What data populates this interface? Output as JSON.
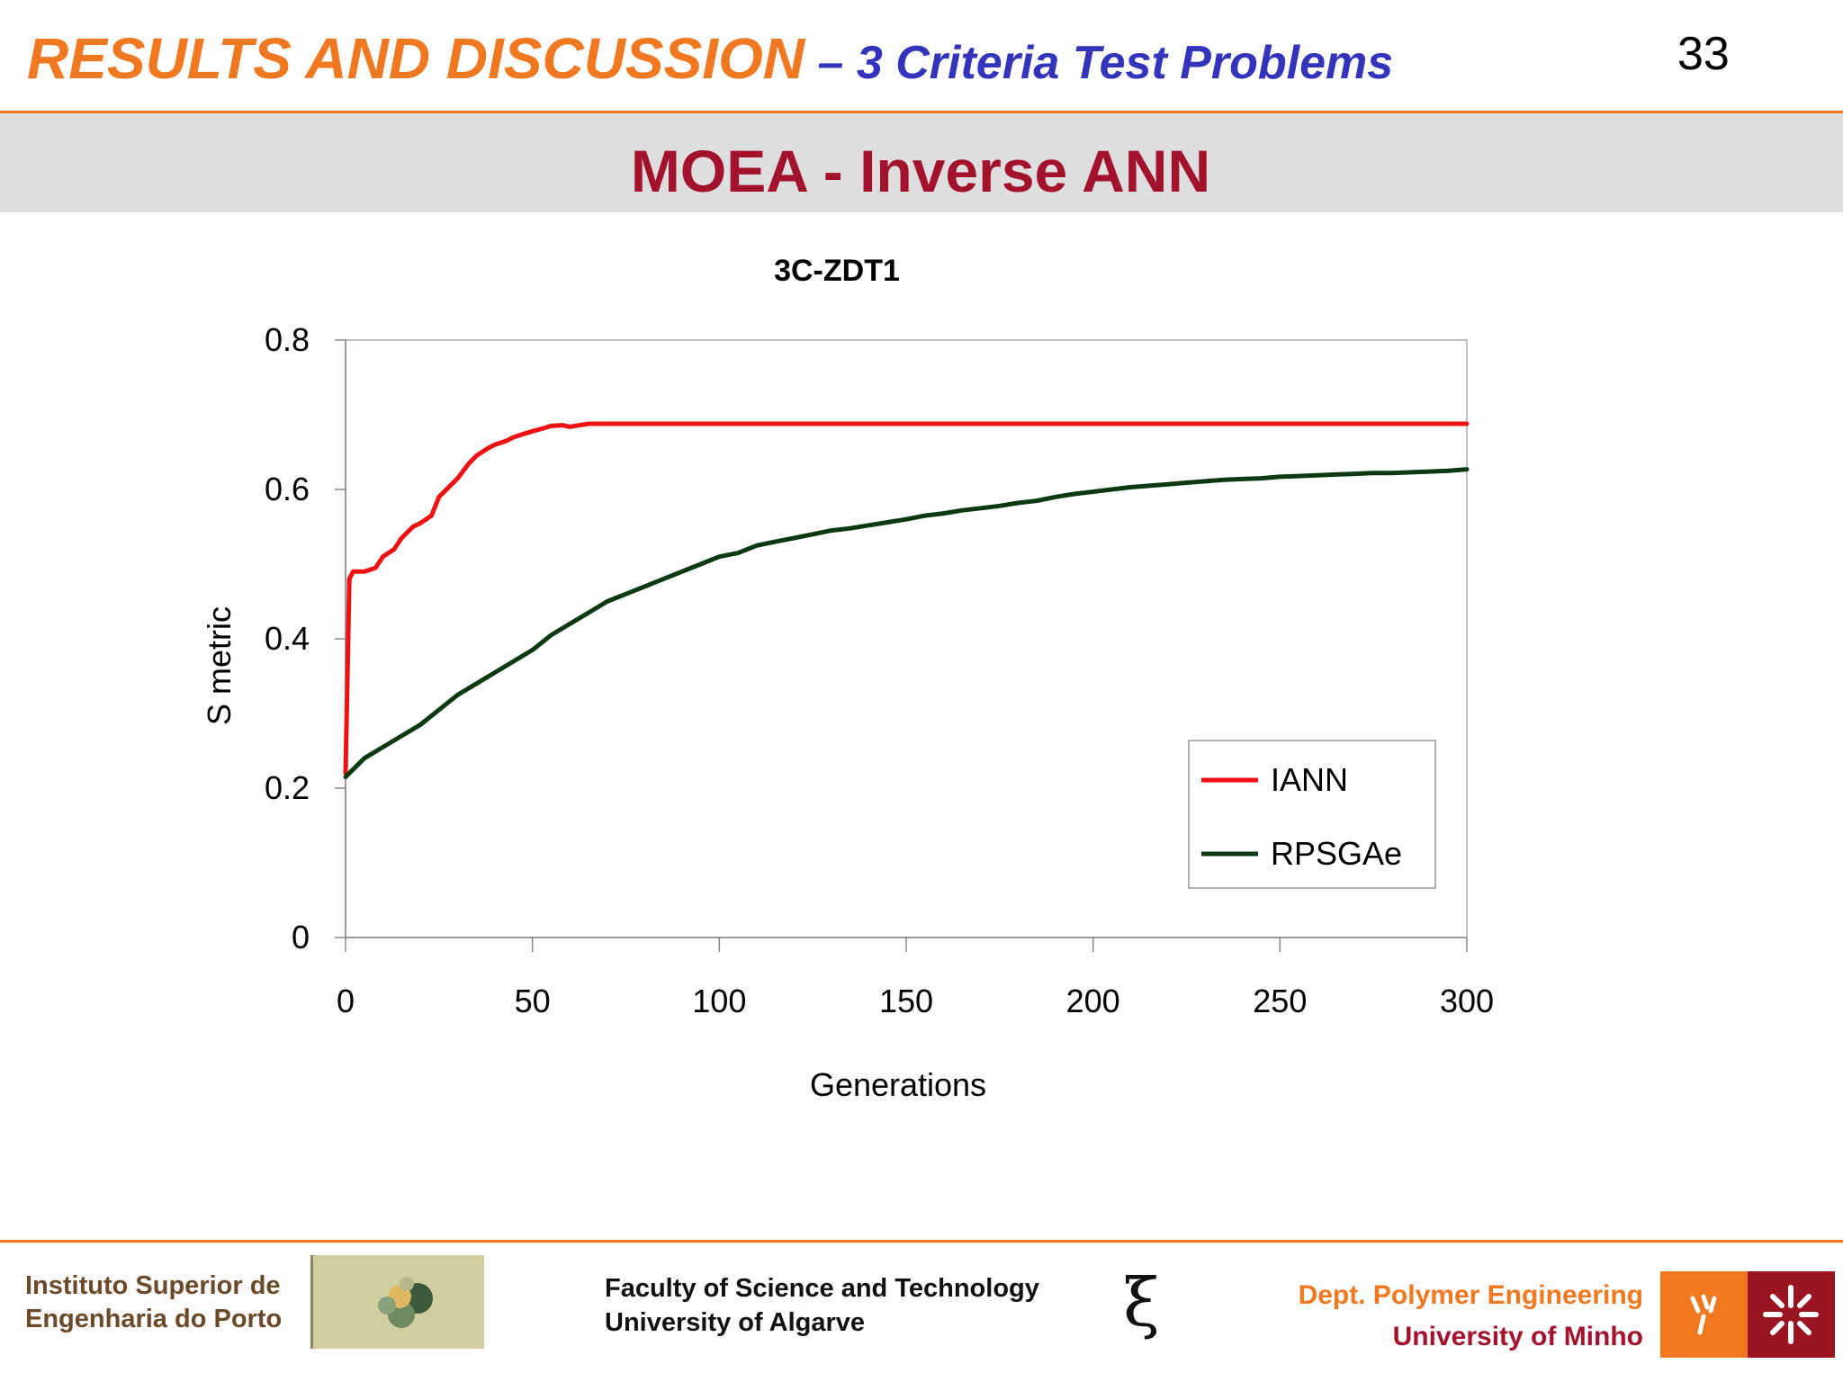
{
  "header": {
    "title_main": "RESULTS AND DISCUSSION",
    "title_sub": " – 3 Criteria Test Problems",
    "page_number": "33",
    "banner": "MOEA - Inverse ANN"
  },
  "chart_data": {
    "type": "line",
    "title": "3C-ZDT1",
    "xlabel": "Generations",
    "ylabel": "S metric",
    "xlim": [
      0,
      300
    ],
    "ylim": [
      0,
      0.8
    ],
    "xticks": [
      0,
      50,
      100,
      150,
      200,
      250,
      300
    ],
    "yticks": [
      0,
      0.2,
      0.4,
      0.6,
      0.8
    ],
    "xtick_labels": [
      "0",
      "50",
      "100",
      "150",
      "200",
      "250",
      "300"
    ],
    "ytick_labels": [
      "0",
      "0.2",
      "0.4",
      "0.6",
      "0.8"
    ],
    "grid": false,
    "legend_position": "bottom-right",
    "series": [
      {
        "name": "IANN",
        "color": "#ee1111",
        "x": [
          0,
          1,
          2,
          5,
          8,
          10,
          13,
          15,
          18,
          20,
          23,
          25,
          28,
          30,
          33,
          35,
          38,
          40,
          43,
          45,
          48,
          50,
          53,
          55,
          58,
          60,
          65,
          300
        ],
        "y": [
          0.22,
          0.48,
          0.49,
          0.49,
          0.495,
          0.51,
          0.52,
          0.535,
          0.55,
          0.555,
          0.565,
          0.59,
          0.605,
          0.615,
          0.635,
          0.645,
          0.655,
          0.66,
          0.665,
          0.67,
          0.675,
          0.678,
          0.682,
          0.685,
          0.686,
          0.684,
          0.688,
          0.688
        ]
      },
      {
        "name": "RPSGAe",
        "color": "#0b3a12",
        "x": [
          0,
          5,
          10,
          15,
          20,
          25,
          30,
          35,
          40,
          45,
          50,
          55,
          60,
          65,
          70,
          75,
          80,
          85,
          90,
          95,
          100,
          105,
          110,
          115,
          120,
          125,
          130,
          135,
          140,
          145,
          150,
          155,
          160,
          165,
          170,
          175,
          180,
          185,
          190,
          195,
          200,
          205,
          210,
          215,
          220,
          225,
          230,
          235,
          240,
          245,
          250,
          255,
          260,
          265,
          270,
          275,
          280,
          285,
          290,
          295,
          300
        ],
        "y": [
          0.215,
          0.24,
          0.255,
          0.27,
          0.285,
          0.305,
          0.325,
          0.34,
          0.355,
          0.37,
          0.385,
          0.405,
          0.42,
          0.435,
          0.45,
          0.46,
          0.47,
          0.48,
          0.49,
          0.5,
          0.51,
          0.515,
          0.525,
          0.53,
          0.535,
          0.54,
          0.545,
          0.548,
          0.552,
          0.556,
          0.56,
          0.565,
          0.568,
          0.572,
          0.575,
          0.578,
          0.582,
          0.585,
          0.59,
          0.594,
          0.597,
          0.6,
          0.603,
          0.605,
          0.607,
          0.609,
          0.611,
          0.613,
          0.614,
          0.615,
          0.617,
          0.618,
          0.619,
          0.62,
          0.621,
          0.622,
          0.622,
          0.623,
          0.624,
          0.625,
          0.627
        ]
      }
    ]
  },
  "footer": {
    "left_line1": "Instituto Superior de",
    "left_line2": "Engenharia do Porto",
    "center_line1": "Faculty of Science and Technology",
    "center_line2": "University of Algarve",
    "center_icon": "ξ",
    "right_line1": "Dept. Polymer Engineering",
    "right_line2": "University of Minho"
  }
}
